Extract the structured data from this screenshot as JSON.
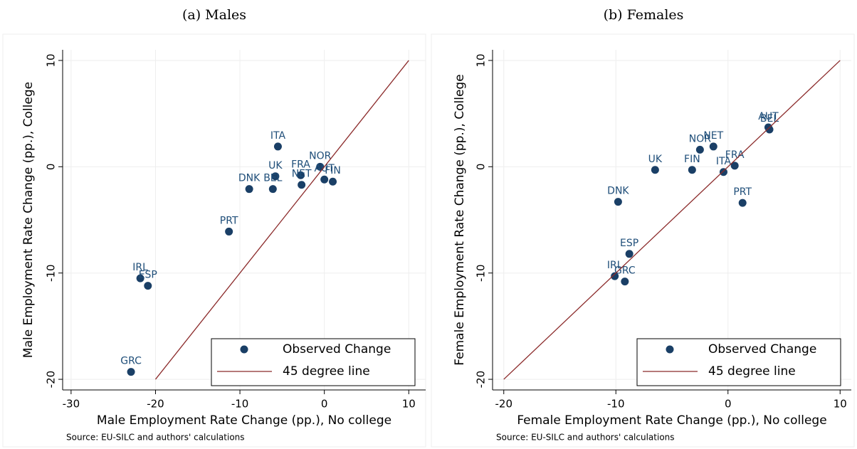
{
  "chart_data": [
    {
      "type": "scatter",
      "title": "(a) Males",
      "x_label": "Male Employment Rate Change (pp.), No college",
      "y_label": "Male Employment Rate Change (pp.), College",
      "note": "Source: EU-SILC and authors' calculations",
      "xlim": [
        -31,
        12
      ],
      "ylim": [
        -21,
        11
      ],
      "xticks": [
        -30,
        -20,
        -10,
        0,
        10
      ],
      "yticks": [
        -20,
        -10,
        0,
        10
      ],
      "grid": true,
      "legend": "lower right",
      "series": [
        {
          "name": "Observed Change",
          "color": "#1a3f66",
          "kind": "points",
          "point_labels": [
            "ITA",
            "NOR",
            "UK",
            "FRA",
            "NET",
            "AUT",
            "FIN",
            "DNK",
            "BEL",
            "PRT",
            "IRL",
            "ESP",
            "GRC"
          ],
          "x": [
            -5.5,
            -0.5,
            -5.8,
            -2.8,
            -2.7,
            0,
            1.0,
            -8.9,
            -6.1,
            -11.3,
            -21.8,
            -20.9,
            -22.9
          ],
          "values": [
            1.9,
            0,
            -0.9,
            -0.8,
            -1.7,
            -1.2,
            -1.4,
            -2.1,
            -2.1,
            -6.1,
            -10.5,
            -11.2,
            -19.3
          ]
        },
        {
          "name": "45 degree line",
          "color": "#8b2a2a",
          "kind": "line",
          "x": [
            -20,
            10
          ],
          "values": [
            -20,
            10
          ]
        }
      ]
    },
    {
      "type": "scatter",
      "title": "(b) Females",
      "x_label": "Female Employment Rate Change (pp.), No college",
      "y_label": "Female Employment Rate Change (pp.), College",
      "note": "Source: EU-SILC and authors' calculations",
      "xlim": [
        -21,
        11
      ],
      "ylim": [
        -21,
        11
      ],
      "xticks": [
        -20,
        -10,
        0,
        10
      ],
      "yticks": [
        -20,
        -10,
        0,
        10
      ],
      "grid": true,
      "legend": "lower right",
      "series": [
        {
          "name": "Observed Change",
          "color": "#1a3f66",
          "kind": "points",
          "point_labels": [
            "AUT",
            "BEL",
            "NOR",
            "NET",
            "UK",
            "FIN",
            "FRA",
            "ITA",
            "DNK",
            "PRT",
            "ESP",
            "IRL",
            "GRC"
          ],
          "x": [
            3.6,
            3.7,
            -2.5,
            -1.3,
            -6.5,
            -3.2,
            0.6,
            -0.4,
            -9.8,
            1.3,
            -8.8,
            -10.1,
            -9.2
          ],
          "values": [
            3.7,
            3.5,
            1.6,
            1.9,
            -0.3,
            -0.3,
            0.1,
            -0.5,
            -3.3,
            -3.4,
            -8.2,
            -10.3,
            -10.8
          ]
        },
        {
          "name": "45 degree line",
          "color": "#8b2a2a",
          "kind": "line",
          "x": [
            -20,
            10
          ],
          "values": [
            -20,
            10
          ]
        }
      ]
    }
  ]
}
